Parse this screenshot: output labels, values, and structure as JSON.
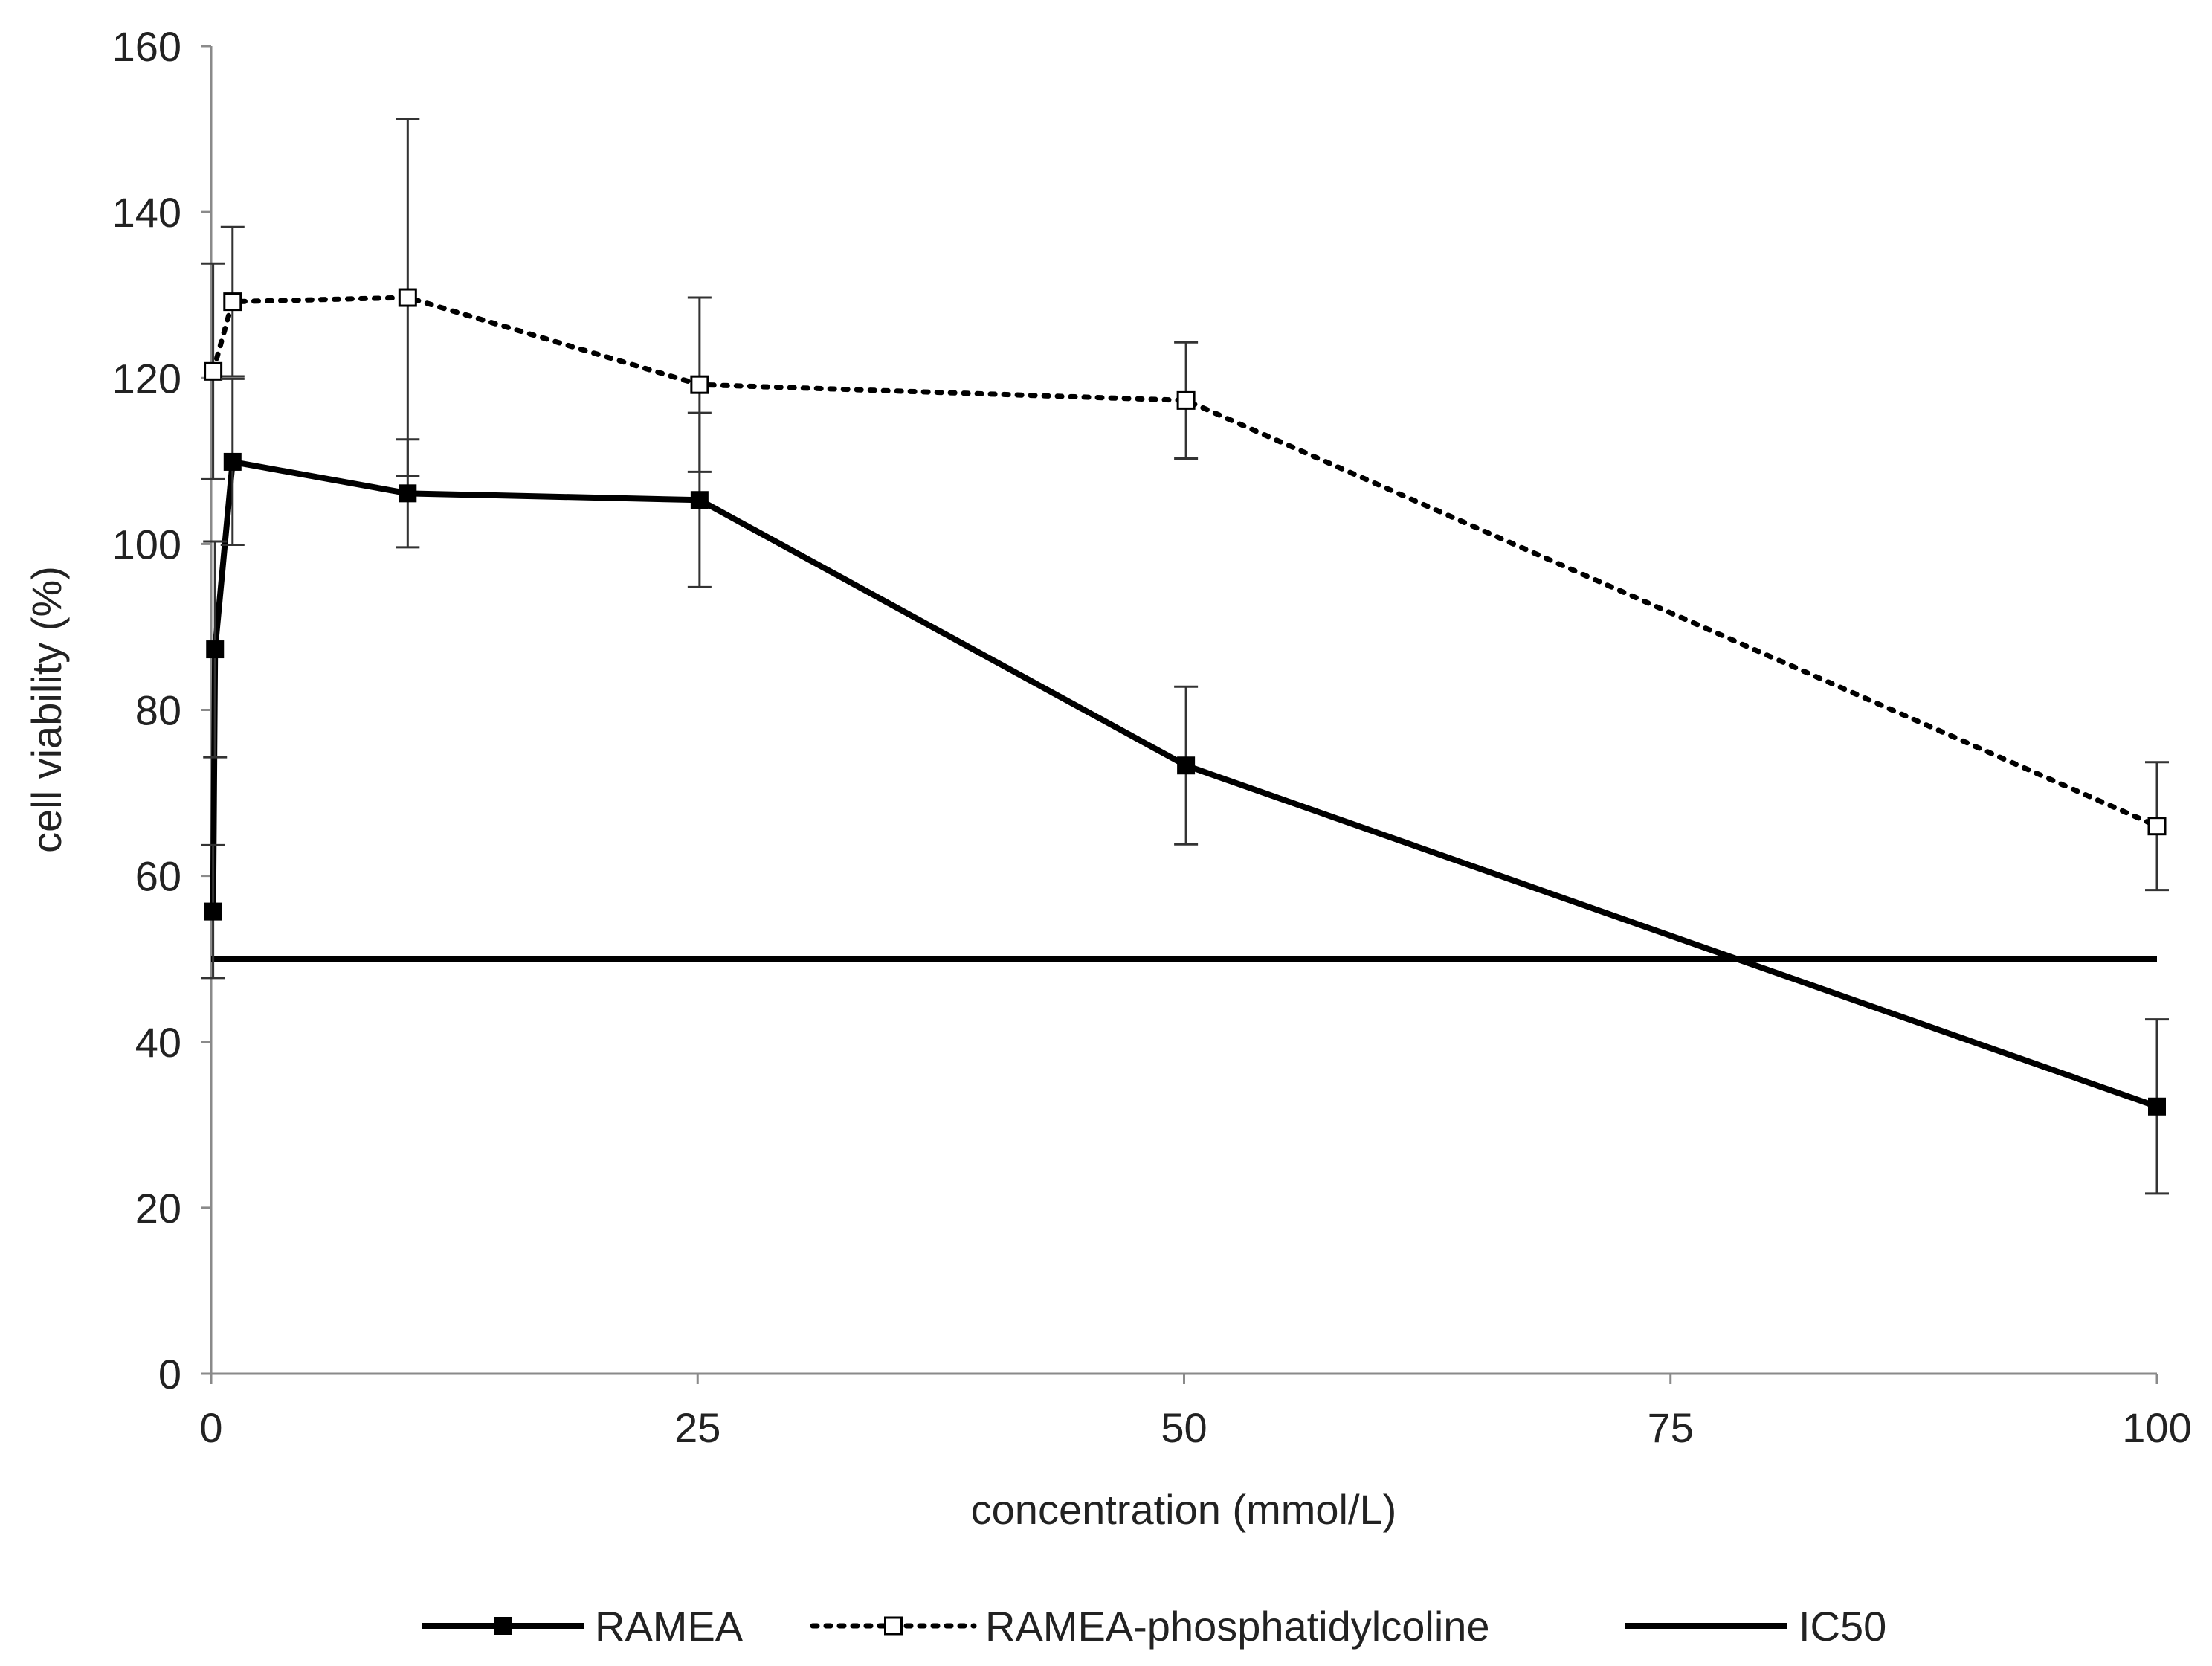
{
  "chart_data": {
    "type": "line",
    "xlabel": "concentration (mmol/L)",
    "ylabel": "cell viability (%)",
    "xlim": [
      0,
      100
    ],
    "ylim": [
      0,
      160
    ],
    "x_ticks": [
      0,
      25,
      50,
      75,
      100
    ],
    "y_ticks": [
      0,
      20,
      40,
      60,
      80,
      100,
      120,
      140,
      160
    ],
    "x_tick_labels": [
      "0",
      "25",
      "50",
      "75",
      "100"
    ],
    "y_tick_labels": [
      "0",
      "20",
      "40",
      "60",
      "80",
      "100",
      "120",
      "140",
      "160"
    ],
    "grid": false,
    "legend_position": "bottom",
    "series": [
      {
        "name": "RAMEA",
        "style": "solid",
        "marker": "filled-square",
        "color": "#000000",
        "points": [
          {
            "x": 0.1,
            "y": 55.7,
            "err": 8.0
          },
          {
            "x": 0.2,
            "y": 87.3,
            "err": 13.0
          },
          {
            "x": 1.1,
            "y": 109.9,
            "err": 10.0
          },
          {
            "x": 10.1,
            "y": 106.1,
            "err": 6.5
          },
          {
            "x": 25.1,
            "y": 105.3,
            "err": 10.5
          },
          {
            "x": 50.1,
            "y": 73.3,
            "err": 9.5
          },
          {
            "x": 100.0,
            "y": 32.2,
            "err": 10.5
          }
        ]
      },
      {
        "name": "RAMEA-phosphatidylcoline",
        "style": "dotted",
        "marker": "open-square",
        "color": "#000000",
        "points": [
          {
            "x": 0.1,
            "y": 120.8,
            "err": 13.0
          },
          {
            "x": 1.1,
            "y": 129.2,
            "err": 9.0
          },
          {
            "x": 10.1,
            "y": 129.7,
            "err": 21.5
          },
          {
            "x": 25.1,
            "y": 119.2,
            "err": 10.5
          },
          {
            "x": 50.1,
            "y": 117.3,
            "err": 7.0
          },
          {
            "x": 100.0,
            "y": 66.0,
            "err": 7.7
          }
        ]
      },
      {
        "name": "IC50",
        "style": "solid",
        "marker": "none",
        "color": "#000000",
        "points": [
          {
            "x": 0,
            "y": 50
          },
          {
            "x": 100,
            "y": 50
          }
        ]
      }
    ]
  }
}
